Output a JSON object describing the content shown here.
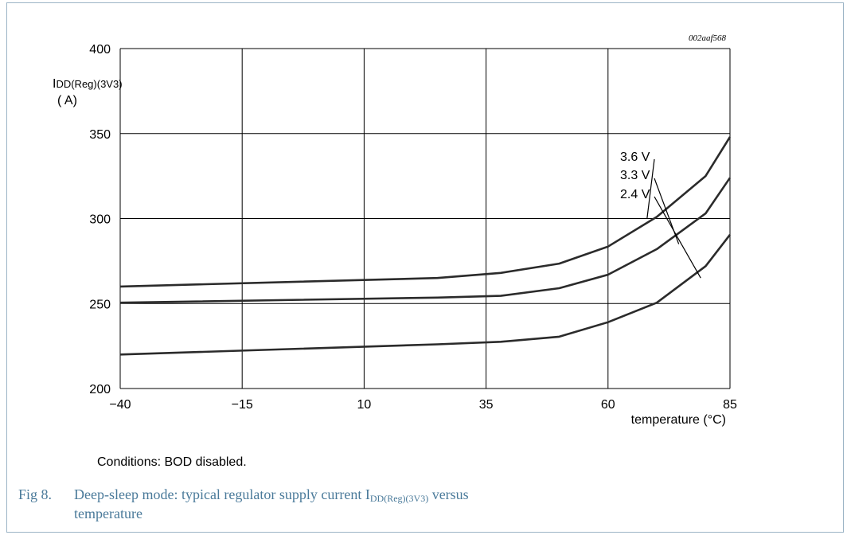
{
  "chart_data": {
    "type": "line",
    "figure_id": "002aaf568",
    "ylabel_main": "I",
    "ylabel_sub": "DD(Reg)(3V3)",
    "ylabel_unit": "( A)",
    "xlabel": "temperature (°C)",
    "xlim": [
      -40,
      85
    ],
    "ylim": [
      200,
      400
    ],
    "x_ticks": [
      -40,
      -15,
      10,
      35,
      60,
      85
    ],
    "x_tick_labels": [
      "−40",
      "−15",
      "10",
      "35",
      "60",
      "85"
    ],
    "y_ticks": [
      200,
      250,
      300,
      350,
      400
    ],
    "y_tick_labels": [
      "200",
      "250",
      "300",
      "350",
      "400"
    ],
    "grid": true,
    "series": [
      {
        "name": "3.6 V",
        "x": [
          -40,
          25,
          38,
          50,
          60,
          70,
          80,
          85
        ],
        "y": [
          260,
          265,
          268,
          273.5,
          283.5,
          301,
          325,
          348
        ]
      },
      {
        "name": "3.3 V",
        "x": [
          -40,
          25,
          38,
          50,
          60,
          70,
          80,
          85
        ],
        "y": [
          250.5,
          253.5,
          254.5,
          259,
          267,
          282,
          303,
          324
        ]
      },
      {
        "name": "2.4 V",
        "x": [
          -40,
          25,
          38,
          50,
          60,
          70,
          80,
          85
        ],
        "y": [
          220,
          226,
          227.5,
          230.5,
          239,
          250.5,
          272,
          290.5
        ]
      }
    ]
  },
  "conditions": "Conditions: BOD disabled.",
  "caption": {
    "number": "Fig 8.",
    "text_before": "Deep-sleep mode: typical regulator supply current I",
    "sub": "DD(Reg)(3V3)",
    "text_after": " versus",
    "line2": "temperature"
  }
}
